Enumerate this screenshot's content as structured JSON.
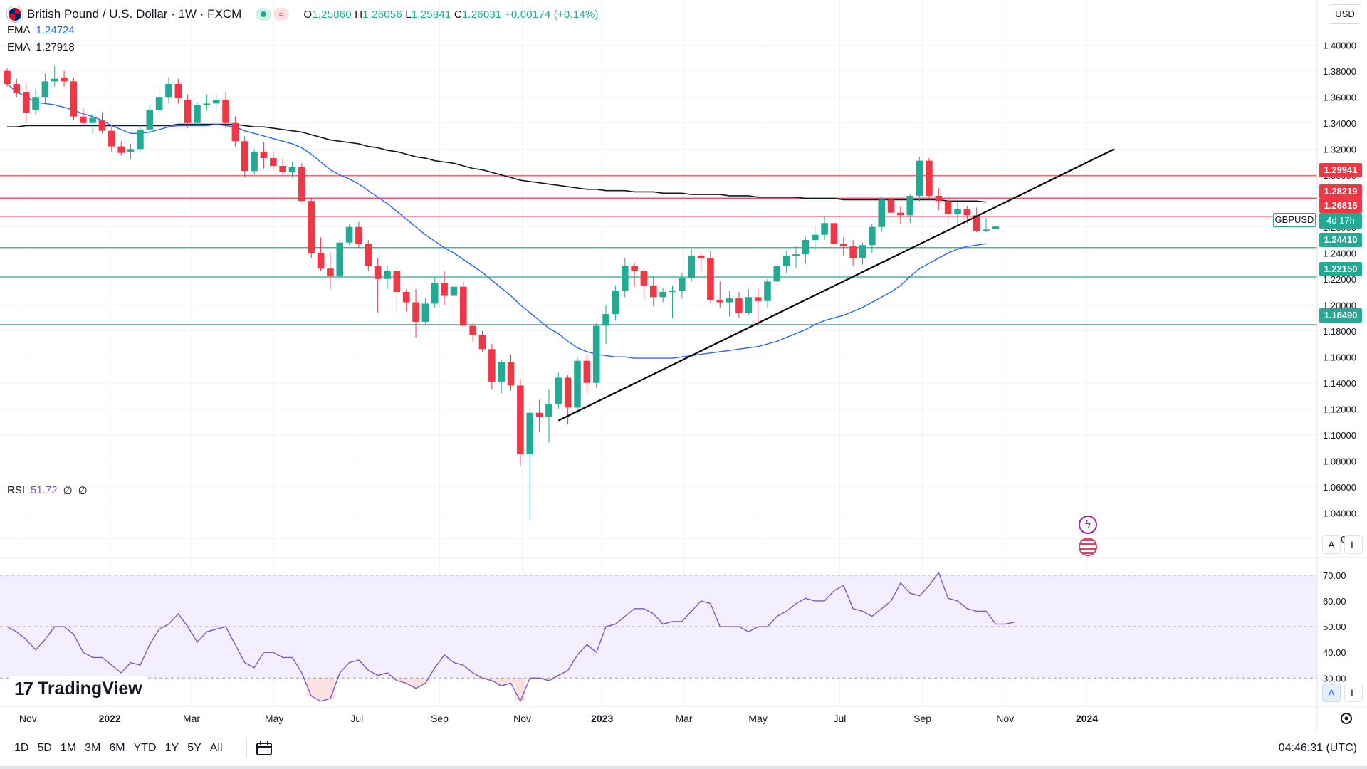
{
  "header": {
    "title": "British Pound / U.S. Dollar · 1W · FXCM",
    "ohlc": {
      "o_label": "O",
      "o": "1.25860",
      "h_label": "H",
      "h": "1.26056",
      "l_label": "L",
      "l": "1.25841",
      "c_label": "C",
      "c": "1.26031",
      "change": "+0.00174 (+0.14%)"
    },
    "currency_button": "USD"
  },
  "indicators": {
    "ema1": {
      "label": "EMA",
      "value": "1.24724",
      "color": "#2962ff"
    },
    "ema2": {
      "label": "EMA",
      "value": "1.27918",
      "color": "#131722"
    },
    "rsi": {
      "label": "RSI",
      "value": "51.72",
      "extra1": "∅",
      "extra2": "∅",
      "color": "#7e57c2"
    }
  },
  "price_tags": {
    "r1": "1.29941",
    "r2": "1.28219",
    "r3": "1.26815",
    "s1": "1.24410",
    "s2": "1.22150",
    "s3": "1.18490",
    "symbol": "GBPUSD",
    "countdown": "4d 17h"
  },
  "buttons": {
    "auto": "A",
    "log": "L",
    "auto2": "A",
    "log2": "L"
  },
  "ranges": [
    "1D",
    "5D",
    "1M",
    "3M",
    "6M",
    "YTD",
    "1Y",
    "5Y",
    "All"
  ],
  "clock": "04:46:31 (UTC)",
  "logo": {
    "mark": "17",
    "text": "TradingView"
  },
  "colors": {
    "up": "#22ab94",
    "down": "#f23645",
    "ema_fast": "#2962ff",
    "ema_slow": "#131722",
    "rsi": "#7e57c2",
    "support": "#22ab94",
    "resistance": "#f23645"
  },
  "chart_data": {
    "type": "candlestick",
    "symbol": "GBPUSD",
    "timeframe": "1W",
    "y_ticks": [
      "1.40000",
      "1.38000",
      "1.36000",
      "1.34000",
      "1.32000",
      "1.30000",
      "1.28000",
      "1.26000",
      "1.24000",
      "1.22000",
      "1.20000",
      "1.18000",
      "1.16000",
      "1.14000",
      "1.12000",
      "1.10000",
      "1.08000",
      "1.06000",
      "1.04000",
      "1.02000"
    ],
    "ylim": [
      1.01,
      1.41
    ],
    "x_ticks": [
      "Nov",
      "2022",
      "Mar",
      "May",
      "Jul",
      "Sep",
      "Nov",
      "2023",
      "Mar",
      "May",
      "Jul",
      "Sep",
      "Nov",
      "2024"
    ],
    "x_tick_weeks": [
      2.2,
      10.8,
      19.4,
      28.1,
      36.8,
      45.5,
      54.2,
      62.6,
      71.2,
      79.0,
      87.6,
      96.3,
      105.0,
      113.6
    ],
    "candles": [
      [
        1.38,
        1.382,
        1.368,
        1.37
      ],
      [
        1.37,
        1.374,
        1.36,
        1.363
      ],
      [
        1.364,
        1.37,
        1.34,
        1.348
      ],
      [
        1.35,
        1.366,
        1.346,
        1.36
      ],
      [
        1.36,
        1.378,
        1.355,
        1.372
      ],
      [
        1.372,
        1.384,
        1.368,
        1.374
      ],
      [
        1.375,
        1.38,
        1.368,
        1.372
      ],
      [
        1.372,
        1.375,
        1.342,
        1.345
      ],
      [
        1.345,
        1.352,
        1.338,
        1.34
      ],
      [
        1.34,
        1.347,
        1.332,
        1.344
      ],
      [
        1.342,
        1.348,
        1.332,
        1.334
      ],
      [
        1.334,
        1.337,
        1.318,
        1.322
      ],
      [
        1.322,
        1.326,
        1.315,
        1.317
      ],
      [
        1.318,
        1.324,
        1.312,
        1.32
      ],
      [
        1.32,
        1.338,
        1.318,
        1.335
      ],
      [
        1.335,
        1.354,
        1.333,
        1.35
      ],
      [
        1.35,
        1.368,
        1.345,
        1.36
      ],
      [
        1.36,
        1.375,
        1.355,
        1.37
      ],
      [
        1.37,
        1.374,
        1.355,
        1.359
      ],
      [
        1.358,
        1.362,
        1.336,
        1.34
      ],
      [
        1.34,
        1.356,
        1.338,
        1.354
      ],
      [
        1.354,
        1.362,
        1.35,
        1.355
      ],
      [
        1.355,
        1.362,
        1.35,
        1.358
      ],
      [
        1.358,
        1.364,
        1.336,
        1.34
      ],
      [
        1.34,
        1.345,
        1.322,
        1.326
      ],
      [
        1.326,
        1.33,
        1.298,
        1.303
      ],
      [
        1.303,
        1.32,
        1.3,
        1.318
      ],
      [
        1.318,
        1.325,
        1.305,
        1.313
      ],
      [
        1.313,
        1.318,
        1.304,
        1.307
      ],
      [
        1.307,
        1.313,
        1.3,
        1.302
      ],
      [
        1.302,
        1.31,
        1.298,
        1.306
      ],
      [
        1.306,
        1.309,
        1.279,
        1.28
      ],
      [
        1.28,
        1.282,
        1.236,
        1.24
      ],
      [
        1.24,
        1.252,
        1.226,
        1.228
      ],
      [
        1.228,
        1.24,
        1.212,
        1.222
      ],
      [
        1.222,
        1.25,
        1.22,
        1.248
      ],
      [
        1.248,
        1.262,
        1.246,
        1.26
      ],
      [
        1.26,
        1.264,
        1.244,
        1.247
      ],
      [
        1.247,
        1.25,
        1.226,
        1.23
      ],
      [
        1.23,
        1.236,
        1.194,
        1.22
      ],
      [
        1.22,
        1.23,
        1.212,
        1.226
      ],
      [
        1.226,
        1.228,
        1.194,
        1.21
      ],
      [
        1.21,
        1.212,
        1.195,
        1.202
      ],
      [
        1.202,
        1.212,
        1.175,
        1.187
      ],
      [
        1.187,
        1.205,
        1.185,
        1.201
      ],
      [
        1.201,
        1.221,
        1.198,
        1.217
      ],
      [
        1.217,
        1.226,
        1.2,
        1.207
      ],
      [
        1.207,
        1.216,
        1.198,
        1.214
      ],
      [
        1.214,
        1.218,
        1.186,
        1.184
      ],
      [
        1.184,
        1.186,
        1.172,
        1.177
      ],
      [
        1.177,
        1.18,
        1.164,
        1.166
      ],
      [
        1.166,
        1.17,
        1.135,
        1.141
      ],
      [
        1.141,
        1.158,
        1.132,
        1.156
      ],
      [
        1.156,
        1.162,
        1.134,
        1.138
      ],
      [
        1.138,
        1.143,
        1.076,
        1.085
      ],
      [
        1.085,
        1.12,
        1.035,
        1.117
      ],
      [
        1.117,
        1.127,
        1.102,
        1.114
      ],
      [
        1.114,
        1.135,
        1.094,
        1.124
      ],
      [
        1.124,
        1.148,
        1.12,
        1.144
      ],
      [
        1.144,
        1.146,
        1.108,
        1.121
      ],
      [
        1.121,
        1.16,
        1.116,
        1.157
      ],
      [
        1.157,
        1.162,
        1.132,
        1.14
      ],
      [
        1.14,
        1.186,
        1.136,
        1.184
      ],
      [
        1.184,
        1.2,
        1.17,
        1.193
      ],
      [
        1.193,
        1.215,
        1.188,
        1.211
      ],
      [
        1.211,
        1.236,
        1.206,
        1.23
      ],
      [
        1.23,
        1.232,
        1.214,
        1.226
      ],
      [
        1.226,
        1.228,
        1.205,
        1.215
      ],
      [
        1.215,
        1.222,
        1.199,
        1.206
      ],
      [
        1.206,
        1.213,
        1.202,
        1.21
      ],
      [
        1.21,
        1.215,
        1.19,
        1.211
      ],
      [
        1.211,
        1.225,
        1.205,
        1.221
      ],
      [
        1.221,
        1.243,
        1.218,
        1.238
      ],
      [
        1.238,
        1.24,
        1.226,
        1.236
      ],
      [
        1.236,
        1.242,
        1.202,
        1.204
      ],
      [
        1.204,
        1.218,
        1.198,
        1.202
      ],
      [
        1.202,
        1.211,
        1.191,
        1.205
      ],
      [
        1.205,
        1.21,
        1.19,
        1.194
      ],
      [
        1.194,
        1.212,
        1.192,
        1.206
      ],
      [
        1.206,
        1.213,
        1.185,
        1.203
      ],
      [
        1.203,
        1.22,
        1.198,
        1.218
      ],
      [
        1.218,
        1.232,
        1.215,
        1.23
      ],
      [
        1.23,
        1.242,
        1.224,
        1.238
      ],
      [
        1.238,
        1.245,
        1.228,
        1.239
      ],
      [
        1.239,
        1.252,
        1.232,
        1.25
      ],
      [
        1.25,
        1.261,
        1.242,
        1.254
      ],
      [
        1.254,
        1.268,
        1.25,
        1.263
      ],
      [
        1.263,
        1.268,
        1.241,
        1.247
      ],
      [
        1.247,
        1.252,
        1.238,
        1.245
      ],
      [
        1.245,
        1.25,
        1.23,
        1.236
      ],
      [
        1.236,
        1.248,
        1.231,
        1.246
      ],
      [
        1.246,
        1.262,
        1.24,
        1.26
      ],
      [
        1.26,
        1.283,
        1.256,
        1.281
      ],
      [
        1.281,
        1.284,
        1.262,
        1.271
      ],
      [
        1.271,
        1.276,
        1.262,
        1.269
      ],
      [
        1.269,
        1.285,
        1.263,
        1.284
      ],
      [
        1.284,
        1.314,
        1.28,
        1.311
      ],
      [
        1.311,
        1.313,
        1.281,
        1.284
      ],
      [
        1.284,
        1.29,
        1.273,
        1.28
      ],
      [
        1.28,
        1.284,
        1.262,
        1.27
      ],
      [
        1.27,
        1.279,
        1.261,
        1.274
      ],
      [
        1.274,
        1.276,
        1.263,
        1.269
      ],
      [
        1.269,
        1.275,
        1.256,
        1.257
      ],
      [
        1.257,
        1.267,
        1.256,
        1.258
      ],
      [
        1.2586,
        1.26056,
        1.25841,
        1.26031
      ]
    ],
    "ema_fast": [
      1.37,
      1.364,
      1.36,
      1.356,
      1.355,
      1.354,
      1.352,
      1.35,
      1.347,
      1.345,
      1.342,
      1.338,
      1.335,
      1.332,
      1.332,
      1.333,
      1.335,
      1.337,
      1.338,
      1.338,
      1.338,
      1.338,
      1.339,
      1.338,
      1.337,
      1.334,
      1.332,
      1.33,
      1.328,
      1.326,
      1.324,
      1.321,
      1.316,
      1.31,
      1.304,
      1.3,
      1.297,
      1.293,
      1.288,
      1.283,
      1.278,
      1.272,
      1.266,
      1.26,
      1.254,
      1.249,
      1.244,
      1.24,
      1.235,
      1.23,
      1.225,
      1.219,
      1.213,
      1.207,
      1.2,
      1.194,
      1.188,
      1.182,
      1.178,
      1.172,
      1.167,
      1.164,
      1.162,
      1.161,
      1.16,
      1.16,
      1.159,
      1.159,
      1.159,
      1.159,
      1.159,
      1.16,
      1.161,
      1.162,
      1.163,
      1.164,
      1.165,
      1.166,
      1.167,
      1.168,
      1.17,
      1.172,
      1.175,
      1.178,
      1.181,
      1.185,
      1.188,
      1.19,
      1.192,
      1.195,
      1.198,
      1.202,
      1.206,
      1.21,
      1.215,
      1.222,
      1.228,
      1.232,
      1.236,
      1.24,
      1.243,
      1.245,
      1.246,
      1.24724
    ],
    "ema_slow": [
      1.337,
      1.337,
      1.338,
      1.338,
      1.338,
      1.338,
      1.338,
      1.338,
      1.338,
      1.338,
      1.338,
      1.338,
      1.338,
      1.338,
      1.338,
      1.338,
      1.338,
      1.338,
      1.339,
      1.339,
      1.339,
      1.339,
      1.339,
      1.339,
      1.339,
      1.338,
      1.337,
      1.337,
      1.336,
      1.335,
      1.334,
      1.333,
      1.331,
      1.329,
      1.327,
      1.326,
      1.325,
      1.324,
      1.322,
      1.321,
      1.319,
      1.318,
      1.316,
      1.314,
      1.313,
      1.311,
      1.31,
      1.309,
      1.307,
      1.305,
      1.304,
      1.302,
      1.3,
      1.298,
      1.296,
      1.295,
      1.294,
      1.293,
      1.292,
      1.291,
      1.29,
      1.289,
      1.289,
      1.288,
      1.288,
      1.288,
      1.287,
      1.287,
      1.287,
      1.286,
      1.286,
      1.286,
      1.285,
      1.285,
      1.285,
      1.285,
      1.284,
      1.284,
      1.284,
      1.283,
      1.283,
      1.283,
      1.283,
      1.283,
      1.282,
      1.282,
      1.282,
      1.282,
      1.281,
      1.281,
      1.281,
      1.281,
      1.281,
      1.281,
      1.281,
      1.281,
      1.281,
      1.281,
      1.281,
      1.28,
      1.28,
      1.28,
      1.28,
      1.27918
    ],
    "rsi": [
      50,
      48,
      45,
      41,
      45,
      50,
      50,
      47,
      40,
      38,
      38,
      35,
      32,
      36,
      35,
      43,
      49,
      51,
      55,
      50,
      44,
      48,
      49,
      50,
      43,
      36,
      34,
      40,
      40,
      38,
      38,
      32,
      23,
      21,
      22,
      32,
      36,
      37,
      33,
      31,
      32,
      29,
      28,
      26,
      28,
      34,
      39,
      36,
      35,
      32,
      30,
      29,
      27,
      28,
      21,
      30,
      30,
      29,
      31,
      33,
      39,
      43,
      40,
      50,
      51,
      54,
      57,
      57,
      55,
      51,
      52,
      52,
      56,
      60,
      59,
      50,
      50,
      50,
      48,
      50,
      50,
      54,
      56,
      59,
      61,
      60,
      60,
      64,
      66,
      57,
      56,
      54,
      57,
      60,
      67,
      63,
      62,
      66,
      71,
      61,
      60,
      57,
      56,
      56,
      51,
      51,
      51.72
    ],
    "rsi_ticks": [
      "70.00",
      "60.00",
      "50.00",
      "40.00",
      "30.00"
    ],
    "rsi_ylim": [
      19,
      73
    ],
    "horizontal_levels": [
      {
        "value": 1.29941,
        "kind": "resistance"
      },
      {
        "value": 1.28219,
        "kind": "resistance"
      },
      {
        "value": 1.26815,
        "kind": "resistance"
      },
      {
        "value": 1.2441,
        "kind": "support"
      },
      {
        "value": 1.2215,
        "kind": "support"
      },
      {
        "value": 1.1849,
        "kind": "support"
      }
    ],
    "trendline": {
      "from": [
        58.0,
        1.111
      ],
      "to": [
        116.5,
        1.32
      ]
    },
    "grid": true,
    "legend_position": "top-left"
  }
}
